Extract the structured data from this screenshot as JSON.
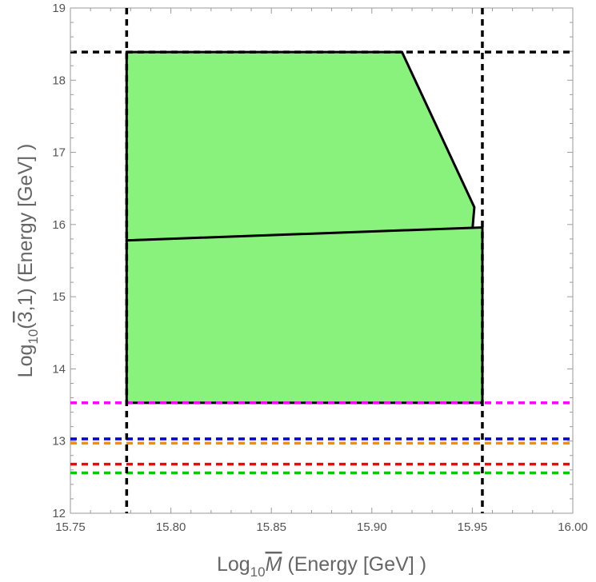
{
  "chart_data": {
    "type": "area",
    "xlabel": {
      "pre": "Log",
      "sub": "10",
      "bar": "M",
      "post": " (Energy [GeV] )"
    },
    "ylabel": {
      "pre": "Log",
      "sub": "10",
      "open": "(",
      "bar": "3",
      "post": ",1)   (Energy [GeV] )"
    },
    "xlim": [
      15.75,
      16.0
    ],
    "ylim": [
      12,
      19
    ],
    "x_ticks": [
      "15.75",
      "15.80",
      "15.85",
      "15.90",
      "15.95",
      "16.00"
    ],
    "y_ticks": [
      "12",
      "13",
      "14",
      "15",
      "16",
      "17",
      "18",
      "19"
    ],
    "x_tick_values": [
      15.75,
      15.8,
      15.85,
      15.9,
      15.95,
      16.0
    ],
    "y_tick_values": [
      12,
      13,
      14,
      15,
      16,
      17,
      18,
      19
    ],
    "grid": false,
    "regions": [
      {
        "fill": "#88f27c",
        "points": [
          [
            15.778,
            18.39
          ],
          [
            15.915,
            18.39
          ],
          [
            15.951,
            16.24
          ],
          [
            15.95,
            15.91
          ],
          [
            15.778,
            15.78
          ]
        ]
      },
      {
        "fill": "#88f27c",
        "points": [
          [
            15.778,
            15.78
          ],
          [
            15.955,
            15.96
          ],
          [
            15.955,
            13.53
          ],
          [
            15.778,
            13.53
          ]
        ]
      }
    ],
    "vertical_lines": [
      {
        "x": 15.778,
        "color": "#000000"
      },
      {
        "x": 15.955,
        "color": "#000000"
      }
    ],
    "horizontal_lines": [
      {
        "y": 18.39,
        "color": "#000000"
      },
      {
        "y": 13.53,
        "color": "#ff00ff"
      },
      {
        "y": 13.03,
        "color": "#0000cc"
      },
      {
        "y": 12.97,
        "color": "#ff8c00"
      },
      {
        "y": 12.68,
        "color": "#ff0000"
      },
      {
        "y": 12.56,
        "color": "#00cc00"
      }
    ]
  }
}
